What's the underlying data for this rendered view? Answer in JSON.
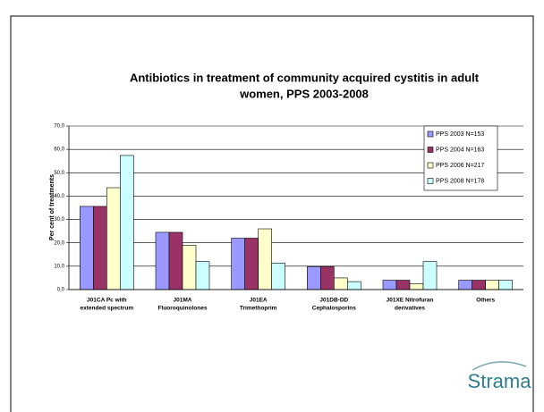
{
  "chart_data": {
    "type": "bar",
    "title": [
      "Antibiotics in treatment of community acquired cystitis in adult",
      "women, PPS 2003-2008"
    ],
    "ylabel": "Per cent of treatments",
    "categories": [
      [
        "J01CA Pc with",
        "extended spectrum"
      ],
      [
        "J01MA",
        "Fluoroquinolones"
      ],
      [
        "J01EA",
        "Trimethoprim"
      ],
      [
        "J01DB-DD",
        "Cephalosporins"
      ],
      [
        "J01XE Nitrofuran",
        "derivatives"
      ],
      [
        "Others"
      ]
    ],
    "series": [
      {
        "name": "PPS 2003 N=153",
        "color": "#9999ff",
        "values": [
          35.6,
          24.5,
          22,
          9.8,
          4,
          4
        ]
      },
      {
        "name": "PPS 2004 N=163",
        "color": "#993366",
        "values": [
          35.6,
          24.5,
          22,
          9.8,
          4,
          4
        ]
      },
      {
        "name": "PPS 2006 N=217",
        "color": "#ffffcc",
        "values": [
          43.6,
          19,
          26,
          5,
          2.5,
          4
        ]
      },
      {
        "name": "PPS 2008 N=178",
        "color": "#ccffff",
        "values": [
          57.4,
          12,
          11.3,
          3.4,
          12,
          4
        ]
      }
    ],
    "ylim": [
      0,
      70
    ],
    "yticks": [
      {
        "value": 0,
        "label": "0,0"
      },
      {
        "value": 10,
        "label": "10,0"
      },
      {
        "value": 20,
        "label": "20,0"
      },
      {
        "value": 30,
        "label": "30,0"
      },
      {
        "value": 40,
        "label": "40,0"
      },
      {
        "value": 50,
        "label": "50,0"
      },
      {
        "value": 60,
        "label": "60,0"
      },
      {
        "value": 70,
        "label": "70,0"
      }
    ],
    "grid": true,
    "legend": "upper right"
  },
  "logo": "Strama"
}
